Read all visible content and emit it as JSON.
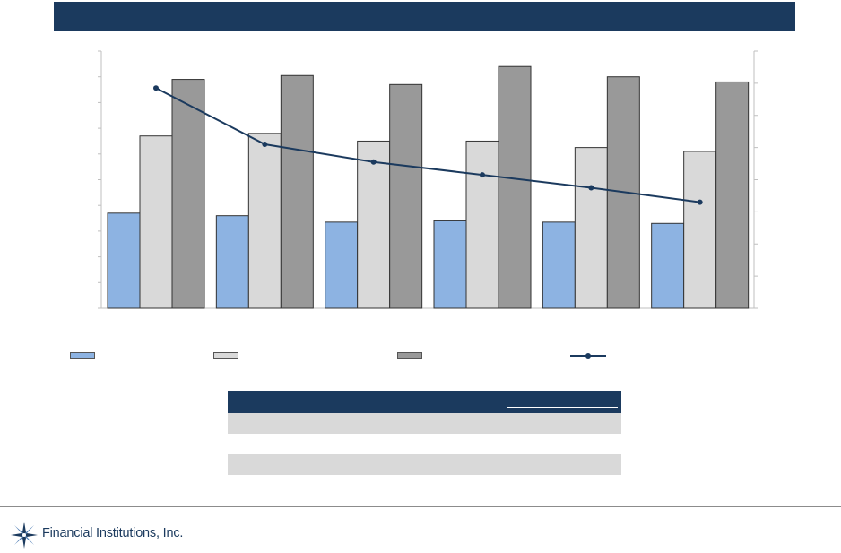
{
  "footer": {
    "company_name": "Financial Institutions, Inc."
  },
  "colors": {
    "navy": "#1b3a5e",
    "series_1": "#8db3e2",
    "series_2": "#d9d9d9",
    "series_3": "#999999",
    "line": "#1b3a5e"
  },
  "chart_data": {
    "type": "bar",
    "categories": [
      "",
      "",
      "",
      "",
      "",
      ""
    ],
    "series": [
      {
        "kind": "bar",
        "axis": "left",
        "color": "#8db3e2",
        "values": [
          3.7,
          3.6,
          3.35,
          3.4,
          3.35,
          3.3
        ]
      },
      {
        "kind": "bar",
        "axis": "left",
        "color": "#d9d9d9",
        "values": [
          6.7,
          6.8,
          6.5,
          6.5,
          6.25,
          6.1
        ]
      },
      {
        "kind": "bar",
        "axis": "left",
        "color": "#999999",
        "values": [
          8.9,
          9.05,
          8.7,
          9.4,
          9.0,
          8.8
        ]
      },
      {
        "kind": "line",
        "axis": "right",
        "color": "#1b3a5e",
        "values": [
          6.85,
          5.1,
          4.55,
          4.15,
          3.75,
          3.3
        ]
      }
    ],
    "ylim": [
      0,
      10
    ],
    "y2lim": [
      0,
      8
    ],
    "grid": false,
    "legend": "bottom"
  }
}
